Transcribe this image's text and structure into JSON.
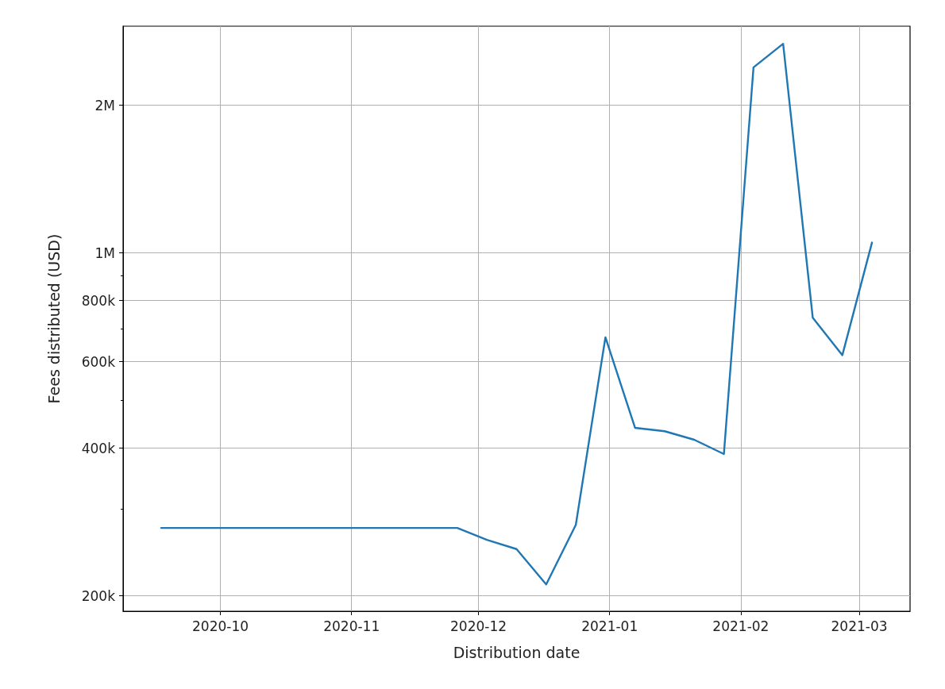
{
  "chart_data": {
    "type": "line",
    "xlabel": "Distribution date",
    "ylabel": "Fees distributed (USD)",
    "x": [
      "2020-09-17",
      "2020-09-24",
      "2020-10-01",
      "2020-10-08",
      "2020-10-15",
      "2020-10-22",
      "2020-10-29",
      "2020-11-05",
      "2020-11-12",
      "2020-11-19",
      "2020-11-26",
      "2020-12-03",
      "2020-12-10",
      "2020-12-17",
      "2020-12-24",
      "2020-12-31",
      "2021-01-07",
      "2021-01-14",
      "2021-01-21",
      "2021-01-28",
      "2021-02-04",
      "2021-02-11",
      "2021-02-18",
      "2021-02-25",
      "2021-03-04"
    ],
    "series": [
      {
        "color": "#1f77b4",
        "values": [
          275000,
          275000,
          275000,
          275000,
          275000,
          275000,
          275000,
          275000,
          275000,
          275000,
          275000,
          260000,
          249000,
          211000,
          279000,
          673000,
          440000,
          433000,
          416000,
          389000,
          2390000,
          2670000,
          738000,
          619000,
          1050000
        ]
      }
    ],
    "xlim": [
      "2020-09-08",
      "2021-03-13"
    ],
    "xticks": [
      {
        "value": "2020-10-01",
        "label": "2020-10"
      },
      {
        "value": "2020-11-01",
        "label": "2020-11"
      },
      {
        "value": "2020-12-01",
        "label": "2020-12"
      },
      {
        "value": "2021-01-01",
        "label": "2021-01"
      },
      {
        "value": "2021-02-01",
        "label": "2021-02"
      },
      {
        "value": "2021-03-01",
        "label": "2021-03"
      }
    ],
    "log": true,
    "ylim": [
      186000,
      2900000
    ],
    "yticks": [
      {
        "value": 200000,
        "label": "200k"
      },
      {
        "value": 300000,
        "label": null
      },
      {
        "value": 400000,
        "label": "400k"
      },
      {
        "value": 500000,
        "label": null
      },
      {
        "value": 600000,
        "label": "600k"
      },
      {
        "value": 700000,
        "label": null
      },
      {
        "value": 800000,
        "label": "800k"
      },
      {
        "value": 900000,
        "label": null
      },
      {
        "value": 1000000,
        "label": "1M"
      },
      {
        "value": 2000000,
        "label": "2M"
      }
    ],
    "grid": true,
    "marker": "none",
    "line_style": "solid"
  }
}
